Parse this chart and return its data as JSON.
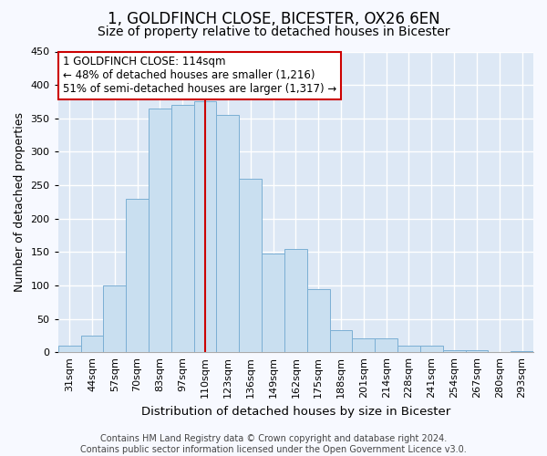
{
  "title": "1, GOLDFINCH CLOSE, BICESTER, OX26 6EN",
  "subtitle": "Size of property relative to detached houses in Bicester",
  "xlabel": "Distribution of detached houses by size in Bicester",
  "ylabel": "Number of detached properties",
  "footer_line1": "Contains HM Land Registry data © Crown copyright and database right 2024.",
  "footer_line2": "Contains public sector information licensed under the Open Government Licence v3.0.",
  "bar_labels": [
    "31sqm",
    "44sqm",
    "57sqm",
    "70sqm",
    "83sqm",
    "97sqm",
    "110sqm",
    "123sqm",
    "136sqm",
    "149sqm",
    "162sqm",
    "175sqm",
    "188sqm",
    "201sqm",
    "214sqm",
    "228sqm",
    "241sqm",
    "254sqm",
    "267sqm",
    "280sqm",
    "293sqm"
  ],
  "bar_heights": [
    10,
    25,
    100,
    230,
    365,
    370,
    375,
    355,
    260,
    147,
    155,
    95,
    33,
    21,
    21,
    10,
    10,
    3,
    3,
    0,
    2
  ],
  "bar_color": "#c9dff0",
  "bar_edge_color": "#7bafd4",
  "annotation_text": "1 GOLDFINCH CLOSE: 114sqm\n← 48% of detached houses are smaller (1,216)\n51% of semi-detached houses are larger (1,317) →",
  "annotation_box_color": "#ffffff",
  "annotation_box_edge": "#cc0000",
  "vline_x_index": 6,
  "vline_color": "#cc0000",
  "ylim": [
    0,
    450
  ],
  "yticks": [
    0,
    50,
    100,
    150,
    200,
    250,
    300,
    350,
    400,
    450
  ],
  "bg_color": "#f7f9ff",
  "plot_bg_color": "#dde8f5",
  "grid_color": "#ffffff",
  "title_fontsize": 12,
  "subtitle_fontsize": 10,
  "xlabel_fontsize": 9.5,
  "ylabel_fontsize": 9,
  "annotation_fontsize": 8.5,
  "tick_fontsize": 8,
  "footer_fontsize": 7
}
